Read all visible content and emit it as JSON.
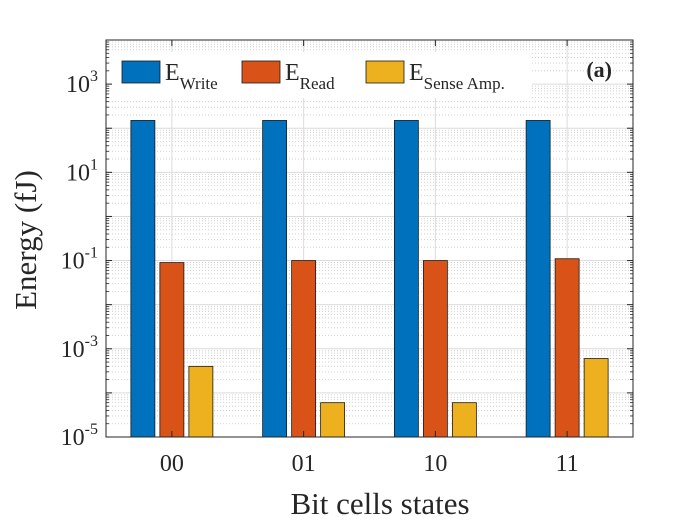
{
  "chart_data": {
    "type": "bar",
    "panel_label": "(a)",
    "xlabel": "Bit cells states",
    "ylabel": "Energy (fJ)",
    "yscale": "log",
    "ylim": [
      1e-05,
      10000
    ],
    "grid": true,
    "legend_position": "top-left",
    "categories": [
      "00",
      "01",
      "10",
      "11"
    ],
    "y_ticks": [
      {
        "value": 1e-05,
        "base": "10",
        "exp": "-5"
      },
      {
        "value": 0.001,
        "base": "10",
        "exp": "-3"
      },
      {
        "value": 0.1,
        "base": "10",
        "exp": "-1"
      },
      {
        "value": 10,
        "base": "10",
        "exp": "1"
      },
      {
        "value": 1000,
        "base": "10",
        "exp": "3"
      }
    ],
    "series": [
      {
        "name": "E",
        "name_sub": "Write",
        "color": "#0072BD",
        "values": [
          150,
          150,
          150,
          150
        ]
      },
      {
        "name": "E",
        "name_sub": "Read",
        "color": "#D95319",
        "values": [
          0.09,
          0.1,
          0.1,
          0.11
        ]
      },
      {
        "name": "E",
        "name_sub": "Sense Amp.",
        "color": "#EDB120",
        "values": [
          0.0004,
          6e-05,
          6e-05,
          0.0006
        ]
      }
    ]
  }
}
